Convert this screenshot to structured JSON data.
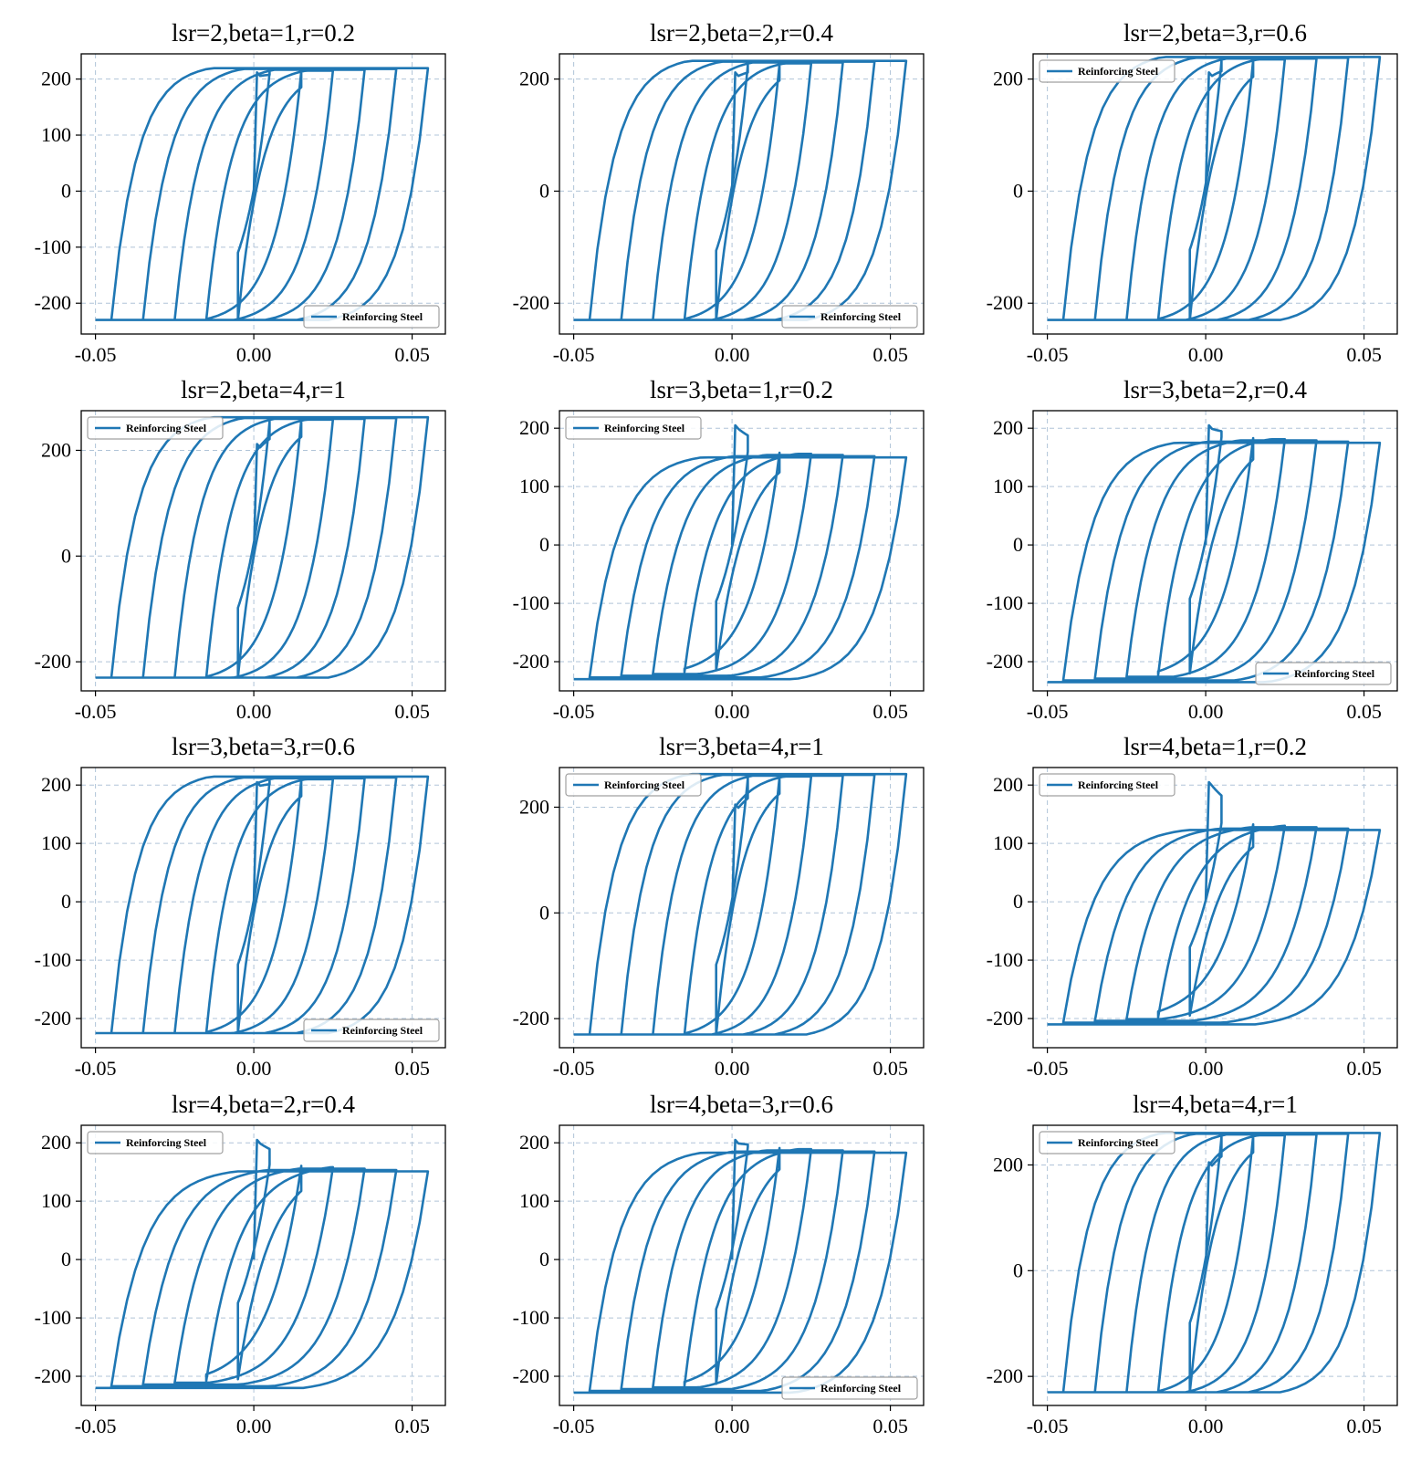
{
  "figure": {
    "line_color": "#1f77b4",
    "grid_color": "#b0c4d8",
    "legend_label": "Reinforcing Steel",
    "xticks": [
      -0.05,
      0.0,
      0.05
    ],
    "xtick_labels": [
      "-0.05",
      "0.00",
      "0.05"
    ]
  },
  "chart_data": [
    {
      "type": "line",
      "title": "lsr=2,beta=1,r=0.2",
      "legend": "bottom-right",
      "ylim": [
        -255,
        245
      ],
      "yticks": [
        200,
        100,
        0,
        -100,
        -200
      ],
      "ytick_labels": [
        "200",
        "100",
        "0",
        "-100",
        "-200"
      ],
      "xlim": [
        -0.0545,
        0.0605
      ],
      "grid": true,
      "ypos": 212,
      "yneg": -230,
      "initial_peak": 212,
      "soft_k": 0.008,
      "degrade": 0,
      "series": [
        {
          "name": "Reinforcing Steel"
        }
      ]
    },
    {
      "type": "line",
      "title": "lsr=2,beta=2,r=0.4",
      "legend": "bottom-right",
      "ylim": [
        -255,
        245
      ],
      "yticks": [
        200,
        0,
        -200
      ],
      "ytick_labels": [
        "200",
        "0",
        "-200"
      ],
      "xlim": [
        -0.0545,
        0.0605
      ],
      "grid": true,
      "ypos": 225,
      "yneg": -230,
      "initial_peak": 212,
      "soft_k": 0.008,
      "degrade": 0,
      "series": [
        {
          "name": "Reinforcing Steel"
        }
      ]
    },
    {
      "type": "line",
      "title": "lsr=2,beta=3,r=0.6",
      "legend": "top-left",
      "ylim": [
        -255,
        245
      ],
      "yticks": [
        200,
        0,
        -200
      ],
      "ytick_labels": [
        "200",
        "0",
        "-200"
      ],
      "xlim": [
        -0.0545,
        0.0605
      ],
      "grid": true,
      "ypos": 232,
      "yneg": -230,
      "initial_peak": 212,
      "soft_k": 0.008,
      "degrade": 0,
      "series": [
        {
          "name": "Reinforcing Steel"
        }
      ]
    },
    {
      "type": "line",
      "title": "lsr=2,beta=4,r=1",
      "legend": "top-left",
      "ylim": [
        -255,
        275
      ],
      "yticks": [
        200,
        0,
        -200
      ],
      "ytick_labels": [
        "200",
        "0",
        "-200"
      ],
      "xlim": [
        -0.0545,
        0.0605
      ],
      "grid": true,
      "ypos": 255,
      "yneg": -230,
      "initial_peak": 212,
      "soft_k": 0.008,
      "degrade": 0,
      "series": [
        {
          "name": "Reinforcing Steel"
        }
      ]
    },
    {
      "type": "line",
      "title": "lsr=3,beta=1,r=0.2",
      "legend": "top-left",
      "ylim": [
        -250,
        230
      ],
      "yticks": [
        200,
        100,
        0,
        -100,
        -200
      ],
      "ytick_labels": [
        "200",
        "100",
        "0",
        "-100",
        "-200"
      ],
      "xlim": [
        -0.0545,
        0.0605
      ],
      "grid": true,
      "ypos": 160,
      "yneg": -215,
      "initial_peak": 205,
      "soft_k": 0.009,
      "degrade": 1,
      "series": [
        {
          "name": "Reinforcing Steel"
        }
      ]
    },
    {
      "type": "line",
      "title": "lsr=3,beta=2,r=0.4",
      "legend": "bottom-right",
      "ylim": [
        -250,
        230
      ],
      "yticks": [
        200,
        100,
        0,
        -100,
        -200
      ],
      "ytick_labels": [
        "200",
        "100",
        "0",
        "-100",
        "-200"
      ],
      "xlim": [
        -0.0545,
        0.0605
      ],
      "grid": true,
      "ypos": 185,
      "yneg": -220,
      "initial_peak": 205,
      "soft_k": 0.009,
      "degrade": 1,
      "series": [
        {
          "name": "Reinforcing Steel"
        }
      ]
    },
    {
      "type": "line",
      "title": "lsr=3,beta=3,r=0.6",
      "legend": "bottom-right",
      "ylim": [
        -250,
        230
      ],
      "yticks": [
        200,
        100,
        0,
        -100,
        -200
      ],
      "ytick_labels": [
        "200",
        "100",
        "0",
        "-100",
        "-200"
      ],
      "xlim": [
        -0.0545,
        0.0605
      ],
      "grid": true,
      "ypos": 207,
      "yneg": -225,
      "initial_peak": 205,
      "soft_k": 0.008,
      "degrade": 0,
      "series": [
        {
          "name": "Reinforcing Steel"
        }
      ]
    },
    {
      "type": "line",
      "title": "lsr=3,beta=4,r=1",
      "legend": "top-left",
      "ylim": [
        -255,
        275
      ],
      "yticks": [
        200,
        0,
        -200
      ],
      "ytick_labels": [
        "200",
        "0",
        "-200"
      ],
      "xlim": [
        -0.0545,
        0.0605
      ],
      "grid": true,
      "ypos": 255,
      "yneg": -230,
      "initial_peak": 205,
      "soft_k": 0.008,
      "degrade": 0,
      "series": [
        {
          "name": "Reinforcing Steel"
        }
      ]
    },
    {
      "type": "line",
      "title": "lsr=4,beta=1,r=0.2",
      "legend": "top-left",
      "ylim": [
        -250,
        230
      ],
      "yticks": [
        200,
        100,
        0,
        -100,
        -200
      ],
      "ytick_labels": [
        "200",
        "100",
        "0",
        "-100",
        "-200"
      ],
      "xlim": [
        -0.0545,
        0.0605
      ],
      "grid": true,
      "ypos": 135,
      "yneg": -195,
      "initial_peak": 205,
      "soft_k": 0.01,
      "degrade": 2,
      "series": [
        {
          "name": "Reinforcing Steel"
        }
      ]
    },
    {
      "type": "line",
      "title": "lsr=4,beta=2,r=0.4",
      "legend": "top-left",
      "ylim": [
        -250,
        230
      ],
      "yticks": [
        200,
        100,
        0,
        -100,
        -200
      ],
      "ytick_labels": [
        "200",
        "100",
        "0",
        "-100",
        "-200"
      ],
      "xlim": [
        -0.0545,
        0.0605
      ],
      "grid": true,
      "ypos": 163,
      "yneg": -205,
      "initial_peak": 205,
      "soft_k": 0.01,
      "degrade": 2,
      "series": [
        {
          "name": "Reinforcing Steel"
        }
      ]
    },
    {
      "type": "line",
      "title": "lsr=4,beta=3,r=0.6",
      "legend": "bottom-right",
      "ylim": [
        -250,
        230
      ],
      "yticks": [
        200,
        100,
        0,
        -100,
        -200
      ],
      "ytick_labels": [
        "200",
        "100",
        "0",
        "-100",
        "-200"
      ],
      "xlim": [
        -0.0545,
        0.0605
      ],
      "grid": true,
      "ypos": 193,
      "yneg": -213,
      "initial_peak": 205,
      "soft_k": 0.009,
      "degrade": 1,
      "series": [
        {
          "name": "Reinforcing Steel"
        }
      ]
    },
    {
      "type": "line",
      "title": "lsr=4,beta=4,r=1",
      "legend": "top-left",
      "ylim": [
        -255,
        275
      ],
      "yticks": [
        200,
        0,
        -200
      ],
      "ytick_labels": [
        "200",
        "0",
        "-200"
      ],
      "xlim": [
        -0.0545,
        0.0605
      ],
      "grid": true,
      "ypos": 253,
      "yneg": -230,
      "initial_peak": 205,
      "soft_k": 0.008,
      "degrade": 0,
      "series": [
        {
          "name": "Reinforcing Steel"
        }
      ]
    }
  ]
}
